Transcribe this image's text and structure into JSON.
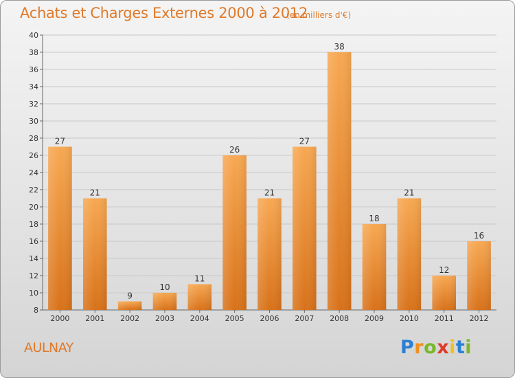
{
  "header": {
    "title": "Achats et Charges Externes 2000 à 2012",
    "unit": "(en milliers d'€)"
  },
  "footer": {
    "city": "AULNAY",
    "logo": {
      "letters": [
        "P",
        "r",
        "o",
        "x",
        "i",
        "t",
        "i"
      ],
      "colors": [
        "#2a7fd4",
        "#f09020",
        "#7ab828",
        "#e03a2a",
        "#f0c020",
        "#2a7fd4",
        "#7ab828"
      ]
    }
  },
  "chart_data": {
    "type": "bar",
    "title": "Achats et Charges Externes 2000 à 2012",
    "subtitle": "(en milliers d'€)",
    "xlabel": "",
    "ylabel": "",
    "categories": [
      "2000",
      "2001",
      "2002",
      "2003",
      "2004",
      "2005",
      "2006",
      "2007",
      "2008",
      "2009",
      "2010",
      "2011",
      "2012"
    ],
    "values": [
      27,
      21,
      9,
      10,
      11,
      26,
      21,
      27,
      38,
      18,
      21,
      12,
      16
    ],
    "ylim": [
      8,
      40
    ],
    "yticks": [
      8,
      10,
      12,
      14,
      16,
      18,
      20,
      22,
      24,
      26,
      28,
      30,
      32,
      34,
      36,
      38,
      40
    ],
    "grid": true,
    "bar_color_top": "#f7a852",
    "bar_color_bottom": "#d8721a"
  }
}
